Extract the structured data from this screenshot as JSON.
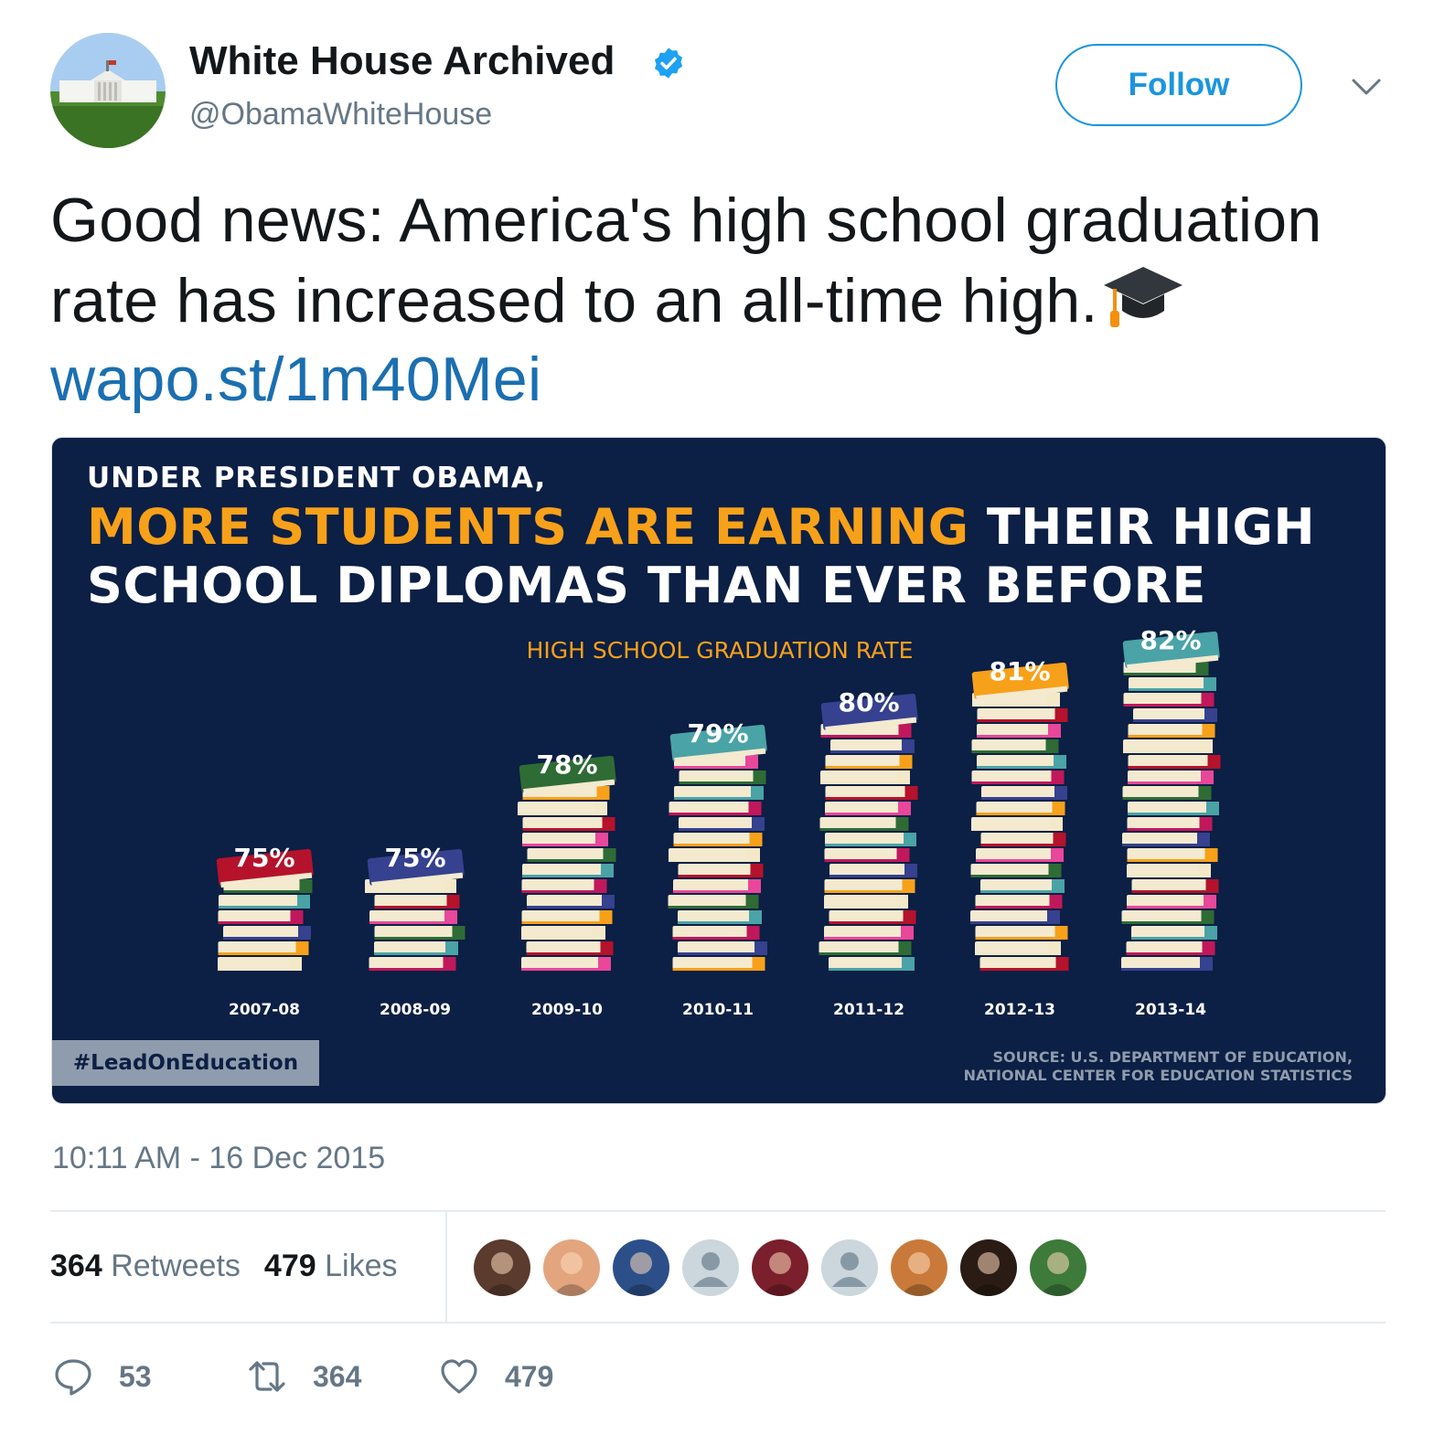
{
  "author": {
    "name": "White House Archived",
    "handle": "@ObamaWhiteHouse",
    "verified_icon": "verified-badge-icon",
    "follow_label": "Follow",
    "menu_icon": "chevron-down-icon"
  },
  "tweet": {
    "text": "Good news: America's high school graduation rate has increased to an all-time high.",
    "emoji": "graduation-cap",
    "link": "wapo.st/1m40Mei",
    "timestamp": "10:11 AM - 16 Dec 2015"
  },
  "infographic": {
    "kicker": "UNDER PRESIDENT OBAMA,",
    "headline_highlight": "MORE STUDENTS ARE EARNING",
    "headline_rest": " THEIR HIGH SCHOOL DIPLOMAS THAN EVER BEFORE",
    "subtitle": "HIGH SCHOOL GRADUATION RATE",
    "hashtag": "#LeadOnEducation",
    "source_line1": "SOURCE: U.S. DEPARTMENT OF EDUCATION,",
    "source_line2": "NATIONAL CENTER FOR EDUCATION STATISTICS",
    "colors": {
      "background": "#0c1f44",
      "highlight": "#f7a11a",
      "book_palette": [
        "#f3e9c9",
        "#f7a11a",
        "#c0185b",
        "#e8479a",
        "#2f6b35",
        "#36418f",
        "#4aa3a6",
        "#b5122b"
      ]
    }
  },
  "chart_data": {
    "type": "bar",
    "title": "HIGH SCHOOL GRADUATION RATE",
    "categories": [
      "2007-08",
      "2008-09",
      "2009-10",
      "2010-11",
      "2011-12",
      "2012-13",
      "2013-14"
    ],
    "values": [
      75,
      75,
      78,
      79,
      80,
      81,
      82
    ],
    "value_labels": [
      "75%",
      "75%",
      "78%",
      "79%",
      "80%",
      "81%",
      "82%"
    ],
    "unit": "%",
    "top_book_colors": [
      "#b5122b",
      "#36418f",
      "#2f6b35",
      "#4aa3a6",
      "#36418f",
      "#f7a11a",
      "#4aa3a6"
    ],
    "grid": false,
    "legend": "none"
  },
  "engagement": {
    "retweets_count": "364",
    "retweets_label": "Retweets",
    "likes_count": "479",
    "likes_label": "Likes",
    "likers": [
      {
        "name": "liker-1",
        "color": "#5a3b2e"
      },
      {
        "name": "liker-2",
        "color": "#e3a57e"
      },
      {
        "name": "liker-3",
        "color": "#2c4f8a"
      },
      {
        "name": "liker-4",
        "color": "#ccd6dd",
        "default": true
      },
      {
        "name": "liker-5",
        "color": "#7a1f2b"
      },
      {
        "name": "liker-6",
        "color": "#ccd6dd",
        "default": true
      },
      {
        "name": "liker-7",
        "color": "#c97a3a"
      },
      {
        "name": "liker-8",
        "color": "#2a1c14"
      },
      {
        "name": "liker-9",
        "color": "#3e7a3a"
      }
    ]
  },
  "actions": {
    "reply_count": "53",
    "retweet_count": "364",
    "like_count": "479",
    "reply_icon": "reply-icon",
    "retweet_icon": "retweet-icon",
    "like_icon": "heart-icon"
  }
}
